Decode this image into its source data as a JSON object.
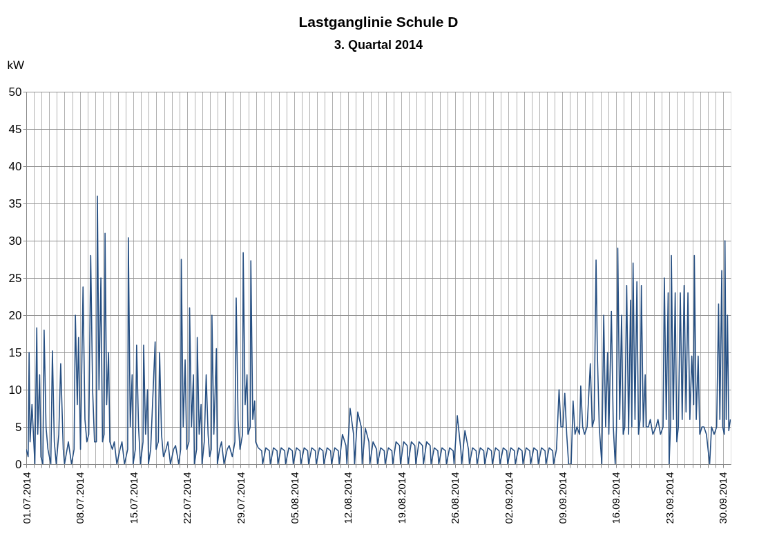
{
  "chart_data": {
    "type": "line",
    "title": "Lastganglinie Schule D",
    "subtitle": "3. Quartal 2014",
    "ylabel": "kW",
    "ylim": [
      0,
      50
    ],
    "yticks": [
      0,
      5,
      10,
      15,
      20,
      25,
      30,
      35,
      40,
      45,
      50
    ],
    "grid": true,
    "marker": "none",
    "line_style": "solid",
    "xlim": [
      "2014-07-01T00:00",
      "2014-10-01T00:00"
    ],
    "xticks": [
      {
        "value": "2014-07-01",
        "label": "01.07.2014"
      },
      {
        "value": "2014-07-02",
        "label": null
      },
      {
        "value": "2014-07-03",
        "label": null
      },
      {
        "value": "2014-07-04",
        "label": null
      },
      {
        "value": "2014-07-05",
        "label": null
      },
      {
        "value": "2014-07-06",
        "label": null
      },
      {
        "value": "2014-07-07",
        "label": null
      },
      {
        "value": "2014-07-08",
        "label": "08.07.2014"
      },
      {
        "value": "2014-07-09",
        "label": null
      },
      {
        "value": "2014-07-10",
        "label": null
      },
      {
        "value": "2014-07-11",
        "label": null
      },
      {
        "value": "2014-07-12",
        "label": null
      },
      {
        "value": "2014-07-13",
        "label": null
      },
      {
        "value": "2014-07-14",
        "label": null
      },
      {
        "value": "2014-07-15",
        "label": "15.07.2014"
      },
      {
        "value": "2014-07-16",
        "label": null
      },
      {
        "value": "2014-07-17",
        "label": null
      },
      {
        "value": "2014-07-18",
        "label": null
      },
      {
        "value": "2014-07-19",
        "label": null
      },
      {
        "value": "2014-07-20",
        "label": null
      },
      {
        "value": "2014-07-21",
        "label": null
      },
      {
        "value": "2014-07-22",
        "label": "22.07.2014"
      },
      {
        "value": "2014-07-23",
        "label": null
      },
      {
        "value": "2014-07-24",
        "label": null
      },
      {
        "value": "2014-07-25",
        "label": null
      },
      {
        "value": "2014-07-26",
        "label": null
      },
      {
        "value": "2014-07-27",
        "label": null
      },
      {
        "value": "2014-07-28",
        "label": null
      },
      {
        "value": "2014-07-29",
        "label": "29.07.2014"
      },
      {
        "value": "2014-07-30",
        "label": null
      },
      {
        "value": "2014-07-31",
        "label": null
      },
      {
        "value": "2014-08-01",
        "label": null
      },
      {
        "value": "2014-08-02",
        "label": null
      },
      {
        "value": "2014-08-03",
        "label": null
      },
      {
        "value": "2014-08-04",
        "label": null
      },
      {
        "value": "2014-08-05",
        "label": "05.08.2014"
      },
      {
        "value": "2014-08-06",
        "label": null
      },
      {
        "value": "2014-08-07",
        "label": null
      },
      {
        "value": "2014-08-08",
        "label": null
      },
      {
        "value": "2014-08-09",
        "label": null
      },
      {
        "value": "2014-08-10",
        "label": null
      },
      {
        "value": "2014-08-11",
        "label": null
      },
      {
        "value": "2014-08-12",
        "label": "12.08.2014"
      },
      {
        "value": "2014-08-13",
        "label": null
      },
      {
        "value": "2014-08-14",
        "label": null
      },
      {
        "value": "2014-08-15",
        "label": null
      },
      {
        "value": "2014-08-16",
        "label": null
      },
      {
        "value": "2014-08-17",
        "label": null
      },
      {
        "value": "2014-08-18",
        "label": null
      },
      {
        "value": "2014-08-19",
        "label": "19.08.2014"
      },
      {
        "value": "2014-08-20",
        "label": null
      },
      {
        "value": "2014-08-21",
        "label": null
      },
      {
        "value": "2014-08-22",
        "label": null
      },
      {
        "value": "2014-08-23",
        "label": null
      },
      {
        "value": "2014-08-24",
        "label": null
      },
      {
        "value": "2014-08-25",
        "label": null
      },
      {
        "value": "2014-08-26",
        "label": "26.08.2014"
      },
      {
        "value": "2014-08-27",
        "label": null
      },
      {
        "value": "2014-08-28",
        "label": null
      },
      {
        "value": "2014-08-29",
        "label": null
      },
      {
        "value": "2014-08-30",
        "label": null
      },
      {
        "value": "2014-08-31",
        "label": null
      },
      {
        "value": "2014-09-01",
        "label": null
      },
      {
        "value": "2014-09-02",
        "label": "02.09.2014"
      },
      {
        "value": "2014-09-03",
        "label": null
      },
      {
        "value": "2014-09-04",
        "label": null
      },
      {
        "value": "2014-09-05",
        "label": null
      },
      {
        "value": "2014-09-06",
        "label": null
      },
      {
        "value": "2014-09-07",
        "label": null
      },
      {
        "value": "2014-09-08",
        "label": null
      },
      {
        "value": "2014-09-09",
        "label": "09.09.2014"
      },
      {
        "value": "2014-09-10",
        "label": null
      },
      {
        "value": "2014-09-11",
        "label": null
      },
      {
        "value": "2014-09-12",
        "label": null
      },
      {
        "value": "2014-09-13",
        "label": null
      },
      {
        "value": "2014-09-14",
        "label": null
      },
      {
        "value": "2014-09-15",
        "label": null
      },
      {
        "value": "2014-09-16",
        "label": "16.09.2014"
      },
      {
        "value": "2014-09-17",
        "label": null
      },
      {
        "value": "2014-09-18",
        "label": null
      },
      {
        "value": "2014-09-19",
        "label": null
      },
      {
        "value": "2014-09-20",
        "label": null
      },
      {
        "value": "2014-09-21",
        "label": null
      },
      {
        "value": "2014-09-22",
        "label": null
      },
      {
        "value": "2014-09-23",
        "label": "23.09.2014"
      },
      {
        "value": "2014-09-24",
        "label": null
      },
      {
        "value": "2014-09-25",
        "label": null
      },
      {
        "value": "2014-09-26",
        "label": null
      },
      {
        "value": "2014-09-27",
        "label": null
      },
      {
        "value": "2014-09-28",
        "label": null
      },
      {
        "value": "2014-09-29",
        "label": null
      },
      {
        "value": "2014-09-30",
        "label": "30.09.2014"
      }
    ],
    "series": [
      {
        "color": "#264f82",
        "x": [
          "2014-07-01T00:00",
          "2014-07-01T06:00",
          "2014-07-01T09:00",
          "2014-07-01T12:00",
          "2014-07-01T18:00",
          "2014-07-02T03:00",
          "2014-07-02T09:00",
          "2014-07-02T12:00",
          "2014-07-02T18:00",
          "2014-07-02T22:00",
          "2014-07-03T04:00",
          "2014-07-03T08:00",
          "2014-07-03T14:00",
          "2014-07-03T20:00",
          "2014-07-04T05:00",
          "2014-07-04T10:00",
          "2014-07-04T16:00",
          "2014-07-04T22:00",
          "2014-07-05T06:00",
          "2014-07-05T12:00",
          "2014-07-05T20:00",
          "2014-07-06T00:00",
          "2014-07-06T12:00",
          "2014-07-06T22:00",
          "2014-07-07T06:00",
          "2014-07-07T10:00",
          "2014-07-07T16:00",
          "2014-07-07T20:00",
          "2014-07-08T02:00",
          "2014-07-08T10:00",
          "2014-07-08T16:00",
          "2014-07-08T22:00",
          "2014-07-09T04:00",
          "2014-07-09T10:00",
          "2014-07-09T16:00",
          "2014-07-09T22:00",
          "2014-07-10T04:00",
          "2014-07-10T07:00",
          "2014-07-10T12:00",
          "2014-07-10T18:00",
          "2014-07-10T23:00",
          "2014-07-11T04:00",
          "2014-07-11T07:00",
          "2014-07-11T12:00",
          "2014-07-11T18:00",
          "2014-07-11T22:00",
          "2014-07-12T06:00",
          "2014-07-12T12:00",
          "2014-07-12T20:00",
          "2014-07-13T06:00",
          "2014-07-13T12:00",
          "2014-07-13T20:00",
          "2014-07-14T06:00",
          "2014-07-14T08:00",
          "2014-07-14T14:00",
          "2014-07-14T20:00",
          "2014-07-14T23:00",
          "2014-07-15T06:00",
          "2014-07-15T10:00",
          "2014-07-15T16:00",
          "2014-07-15T22:00",
          "2014-07-16T06:00",
          "2014-07-16T08:00",
          "2014-07-16T14:00",
          "2014-07-16T20:00",
          "2014-07-16T23:00",
          "2014-07-17T06:00",
          "2014-07-17T20:00",
          "2014-07-17T23:00",
          "2014-07-18T06:00",
          "2014-07-18T10:00",
          "2014-07-18T16:00",
          "2014-07-18T22:00",
          "2014-07-19T06:00",
          "2014-07-19T12:00",
          "2014-07-19T20:00",
          "2014-07-20T06:00",
          "2014-07-20T12:00",
          "2014-07-20T22:00",
          "2014-07-21T04:00",
          "2014-07-21T06:00",
          "2014-07-21T12:00",
          "2014-07-21T18:00",
          "2014-07-21T23:00",
          "2014-07-22T06:00",
          "2014-07-22T08:00",
          "2014-07-22T14:00",
          "2014-07-22T20:00",
          "2014-07-22T23:00",
          "2014-07-23T06:00",
          "2014-07-23T08:00",
          "2014-07-23T14:00",
          "2014-07-23T20:00",
          "2014-07-23T23:00",
          "2014-07-24T06:00",
          "2014-07-24T12:00",
          "2014-07-24T18:00",
          "2014-07-24T23:00",
          "2014-07-25T04:00",
          "2014-07-25T06:00",
          "2014-07-25T12:00",
          "2014-07-25T20:00",
          "2014-07-25T23:00",
          "2014-07-26T06:00",
          "2014-07-26T12:00",
          "2014-07-26T20:00",
          "2014-07-27T06:00",
          "2014-07-27T12:00",
          "2014-07-27T22:00",
          "2014-07-28T06:00",
          "2014-07-28T10:00",
          "2014-07-28T16:00",
          "2014-07-28T22:00",
          "2014-07-29T06:00",
          "2014-07-29T08:00",
          "2014-07-29T14:00",
          "2014-07-29T20:00",
          "2014-07-29T23:00",
          "2014-07-30T06:00",
          "2014-07-30T08:00",
          "2014-07-30T14:00",
          "2014-07-30T20:00",
          "2014-07-30T23:00",
          "2014-07-31T07:00",
          "2014-07-31T18:00",
          "2014-07-31T21:00",
          "2014-08-01T07:00",
          "2014-08-01T18:00",
          "2014-08-01T21:00",
          "2014-08-02T07:00",
          "2014-08-02T18:00",
          "2014-08-02T21:00",
          "2014-08-03T07:00",
          "2014-08-03T18:00",
          "2014-08-03T21:00",
          "2014-08-04T07:00",
          "2014-08-04T18:00",
          "2014-08-04T21:00",
          "2014-08-05T07:00",
          "2014-08-05T18:00",
          "2014-08-05T21:00",
          "2014-08-06T07:00",
          "2014-08-06T18:00",
          "2014-08-06T21:00",
          "2014-08-07T07:00",
          "2014-08-07T18:00",
          "2014-08-07T21:00",
          "2014-08-08T07:00",
          "2014-08-08T18:00",
          "2014-08-08T21:00",
          "2014-08-09T07:00",
          "2014-08-09T18:00",
          "2014-08-09T21:00",
          "2014-08-10T07:00",
          "2014-08-10T18:00",
          "2014-08-10T21:00",
          "2014-08-11T07:00",
          "2014-08-11T18:00",
          "2014-08-11T21:00",
          "2014-08-12T07:00",
          "2014-08-12T18:00",
          "2014-08-12T21:00",
          "2014-08-13T07:00",
          "2014-08-13T18:00",
          "2014-08-13T21:00",
          "2014-08-14T07:00",
          "2014-08-14T18:00",
          "2014-08-14T21:00",
          "2014-08-15T07:00",
          "2014-08-15T18:00",
          "2014-08-15T21:00",
          "2014-08-16T07:00",
          "2014-08-16T18:00",
          "2014-08-16T21:00",
          "2014-08-17T07:00",
          "2014-08-17T18:00",
          "2014-08-17T21:00",
          "2014-08-18T07:00",
          "2014-08-18T18:00",
          "2014-08-18T21:00",
          "2014-08-19T07:00",
          "2014-08-19T18:00",
          "2014-08-19T21:00",
          "2014-08-20T07:00",
          "2014-08-20T18:00",
          "2014-08-20T21:00",
          "2014-08-21T07:00",
          "2014-08-21T18:00",
          "2014-08-21T21:00",
          "2014-08-22T07:00",
          "2014-08-22T18:00",
          "2014-08-22T21:00",
          "2014-08-23T07:00",
          "2014-08-23T18:00",
          "2014-08-23T21:00",
          "2014-08-24T07:00",
          "2014-08-24T18:00",
          "2014-08-24T21:00",
          "2014-08-25T07:00",
          "2014-08-25T18:00",
          "2014-08-25T21:00",
          "2014-08-26T07:00",
          "2014-08-26T18:00",
          "2014-08-26T21:00",
          "2014-08-27T07:00",
          "2014-08-27T18:00",
          "2014-08-27T21:00",
          "2014-08-28T07:00",
          "2014-08-28T18:00",
          "2014-08-28T21:00",
          "2014-08-29T07:00",
          "2014-08-29T18:00",
          "2014-08-29T21:00",
          "2014-08-30T07:00",
          "2014-08-30T18:00",
          "2014-08-30T21:00",
          "2014-08-31T07:00",
          "2014-08-31T18:00",
          "2014-08-31T21:00",
          "2014-09-01T07:00",
          "2014-09-01T18:00",
          "2014-09-01T21:00",
          "2014-09-02T07:00",
          "2014-09-02T18:00",
          "2014-09-02T21:00",
          "2014-09-03T07:00",
          "2014-09-03T18:00",
          "2014-09-03T21:00",
          "2014-09-04T07:00",
          "2014-09-04T18:00",
          "2014-09-04T21:00",
          "2014-09-05T07:00",
          "2014-09-05T18:00",
          "2014-09-05T21:00",
          "2014-09-06T07:00",
          "2014-09-06T18:00",
          "2014-09-06T21:00",
          "2014-09-07T07:00",
          "2014-09-07T18:00",
          "2014-09-07T21:00",
          "2014-09-08T06:00",
          "2014-09-08T14:00",
          "2014-09-08T20:00",
          "2014-09-09T02:00",
          "2014-09-09T08:00",
          "2014-09-09T14:00",
          "2014-09-09T20:00",
          "2014-09-10T04:00",
          "2014-09-10T10:00",
          "2014-09-10T16:00",
          "2014-09-10T22:00",
          "2014-09-11T06:00",
          "2014-09-11T10:00",
          "2014-09-11T16:00",
          "2014-09-11T22:00",
          "2014-09-12T06:00",
          "2014-09-12T16:00",
          "2014-09-12T22:00",
          "2014-09-13T04:00",
          "2014-09-13T10:00",
          "2014-09-13T14:00",
          "2014-09-13T20:00",
          "2014-09-14T04:00",
          "2014-09-14T10:00",
          "2014-09-14T16:00",
          "2014-09-14T22:00",
          "2014-09-15T02:00",
          "2014-09-15T10:00",
          "2014-09-15T16:00",
          "2014-09-15T22:00",
          "2014-09-16T02:00",
          "2014-09-16T06:00",
          "2014-09-16T12:00",
          "2014-09-16T18:00",
          "2014-09-16T23:00",
          "2014-09-17T04:00",
          "2014-09-17T10:00",
          "2014-09-17T16:00",
          "2014-09-17T22:00",
          "2014-09-18T02:00",
          "2014-09-18T06:00",
          "2014-09-18T12:00",
          "2014-09-18T18:00",
          "2014-09-18T23:00",
          "2014-09-19T04:00",
          "2014-09-19T08:00",
          "2014-09-19T14:00",
          "2014-09-19T20:00",
          "2014-09-19T23:00",
          "2014-09-20T06:00",
          "2014-09-20T12:00",
          "2014-09-20T20:00",
          "2014-09-21T06:00",
          "2014-09-21T12:00",
          "2014-09-21T20:00",
          "2014-09-22T04:00",
          "2014-09-22T08:00",
          "2014-09-22T14:00",
          "2014-09-22T20:00",
          "2014-09-22T23:00",
          "2014-09-23T04:00",
          "2014-09-23T06:00",
          "2014-09-23T12:00",
          "2014-09-23T18:00",
          "2014-09-23T23:00",
          "2014-09-24T04:00",
          "2014-09-24T10:00",
          "2014-09-24T16:00",
          "2014-09-24T22:00",
          "2014-09-25T04:00",
          "2014-09-25T10:00",
          "2014-09-25T16:00",
          "2014-09-25T22:00",
          "2014-09-26T04:00",
          "2014-09-26T06:00",
          "2014-09-26T12:00",
          "2014-09-26T18:00",
          "2014-09-26T23:00",
          "2014-09-27T06:00",
          "2014-09-27T12:00",
          "2014-09-27T20:00",
          "2014-09-28T06:00",
          "2014-09-28T12:00",
          "2014-09-28T20:00",
          "2014-09-29T04:00",
          "2014-09-29T10:00",
          "2014-09-29T14:00",
          "2014-09-29T20:00",
          "2014-09-29T23:00",
          "2014-09-30T04:00",
          "2014-09-30T06:00",
          "2014-09-30T10:00",
          "2014-09-30T14:00",
          "2014-09-30T18:00",
          "2014-09-30T23:00"
        ],
        "values": [
          2,
          1,
          15,
          3,
          8,
          0,
          18.3,
          4,
          12,
          1,
          0,
          18,
          5,
          2,
          0,
          15.2,
          3,
          0,
          4,
          13.5,
          2,
          0,
          3,
          0,
          2,
          20,
          8,
          17,
          2,
          23.8,
          6,
          3,
          4,
          28,
          10,
          3,
          3,
          36,
          10,
          25,
          3,
          4,
          31,
          8,
          15,
          3,
          2,
          3,
          0,
          2,
          3,
          0,
          2,
          30.4,
          5,
          12,
          0,
          2,
          16,
          5,
          0,
          3,
          16,
          4,
          10,
          0,
          2,
          16.4,
          2,
          3,
          15,
          4,
          1,
          2,
          3,
          0,
          2,
          2.5,
          0,
          2,
          27.5,
          5,
          14,
          2,
          3,
          21,
          5,
          12,
          0,
          2,
          17,
          4,
          8,
          0,
          3,
          12,
          4,
          1,
          2,
          20,
          4,
          15.5,
          0,
          2,
          3,
          0,
          2,
          2.5,
          1,
          3,
          22.3,
          6,
          2,
          4,
          28.4,
          8,
          12,
          4,
          5,
          27.3,
          6,
          8.5,
          3,
          2.2,
          1.8,
          0,
          2.2,
          1.8,
          0,
          2.2,
          1.8,
          0,
          2.2,
          1.8,
          0,
          2.2,
          1.8,
          0,
          2.2,
          1.8,
          0,
          2.2,
          1.8,
          0,
          2.2,
          1.8,
          0,
          2.2,
          1.8,
          0,
          2.2,
          1.8,
          0,
          2.2,
          1.8,
          0,
          4,
          2.5,
          0,
          7.5,
          4,
          0,
          7,
          5,
          0,
          4.8,
          3,
          0,
          3,
          2,
          0,
          2.2,
          1.8,
          0,
          2.2,
          1.8,
          0,
          3,
          2.5,
          0,
          3,
          2.5,
          0,
          3,
          2.5,
          0,
          3,
          2.5,
          0,
          3,
          2.5,
          0,
          2.2,
          1.8,
          0,
          2.2,
          1.8,
          0,
          2.2,
          1.8,
          0,
          6.5,
          2,
          0,
          4.5,
          2,
          0,
          2.2,
          1.8,
          0,
          2.2,
          1.8,
          0,
          2.2,
          1.8,
          0,
          2.2,
          1.8,
          0,
          2.2,
          1.8,
          0,
          2.2,
          1.8,
          0,
          2.2,
          1.8,
          0,
          2.2,
          1.8,
          0,
          2.2,
          1.8,
          0,
          2.2,
          1.8,
          0,
          2.2,
          1.8,
          0,
          2,
          10,
          5,
          5,
          9.5,
          4,
          0,
          0,
          8.5,
          4,
          5,
          4,
          10.5,
          5,
          4,
          5,
          13.5,
          5,
          6,
          27.4,
          15,
          5,
          0,
          20,
          5,
          15,
          4,
          20.5,
          5,
          0,
          5,
          29,
          6,
          20,
          4,
          5,
          24,
          4,
          22,
          5,
          27,
          6,
          24.5,
          4,
          6,
          24,
          5,
          12,
          5,
          5,
          6,
          4,
          5,
          6,
          4,
          5,
          25,
          6,
          23,
          0,
          6,
          28,
          6,
          23,
          3,
          5,
          23,
          6,
          24,
          7,
          23,
          6,
          14.5,
          8,
          28,
          6,
          14.5,
          4,
          5,
          5,
          4,
          0,
          5,
          4,
          5,
          21.5,
          6,
          26,
          5,
          4,
          30,
          6,
          20,
          4.5,
          6
        ]
      }
    ]
  }
}
